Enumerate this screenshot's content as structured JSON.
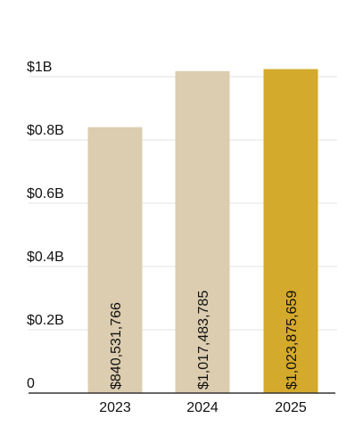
{
  "chart_data": {
    "type": "bar",
    "categories": [
      "2023",
      "2024",
      "2025"
    ],
    "values": [
      840531766,
      1017483785,
      1023875659
    ],
    "data_labels": [
      "$840,531,766",
      "$1,017,483,785",
      "$1,023,875,659"
    ],
    "y_ticks": [
      {
        "value": 0,
        "label": "0"
      },
      {
        "value": 200000000,
        "label": "$0.2B"
      },
      {
        "value": 400000000,
        "label": "$0.4B"
      },
      {
        "value": 600000000,
        "label": "$0.6B"
      },
      {
        "value": 800000000,
        "label": "$0.8B"
      },
      {
        "value": 1000000000,
        "label": "$1B"
      }
    ],
    "ylim": [
      0,
      1000000000
    ],
    "grid": true,
    "title": "",
    "xlabel": "",
    "ylabel": "",
    "colors": {
      "default_bar": "#dccdb0",
      "highlight_bar": "#d4aa2c",
      "highlight_category": "2025"
    }
  }
}
